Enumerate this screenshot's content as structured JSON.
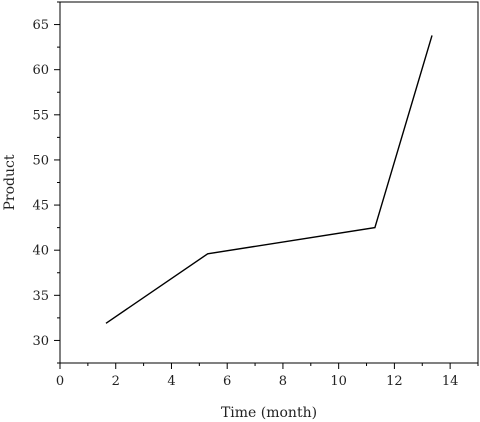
{
  "chart_data": {
    "type": "line",
    "title": "",
    "xlabel": "Time (month)",
    "ylabel": "Product",
    "xlim": [
      0,
      15
    ],
    "ylim": [
      27.5,
      67.5
    ],
    "x_ticks": [
      0,
      2,
      4,
      6,
      8,
      10,
      12,
      14
    ],
    "y_ticks": [
      30,
      35,
      40,
      45,
      50,
      55,
      60,
      65
    ],
    "grid": false,
    "legend": "none",
    "series": [
      {
        "x": [
          1.65,
          5.3,
          11.3,
          13.35
        ],
        "y": [
          31.9,
          39.6,
          42.5,
          63.8
        ]
      }
    ],
    "colors": {
      "line": "#000000",
      "axis": "#000000"
    }
  }
}
